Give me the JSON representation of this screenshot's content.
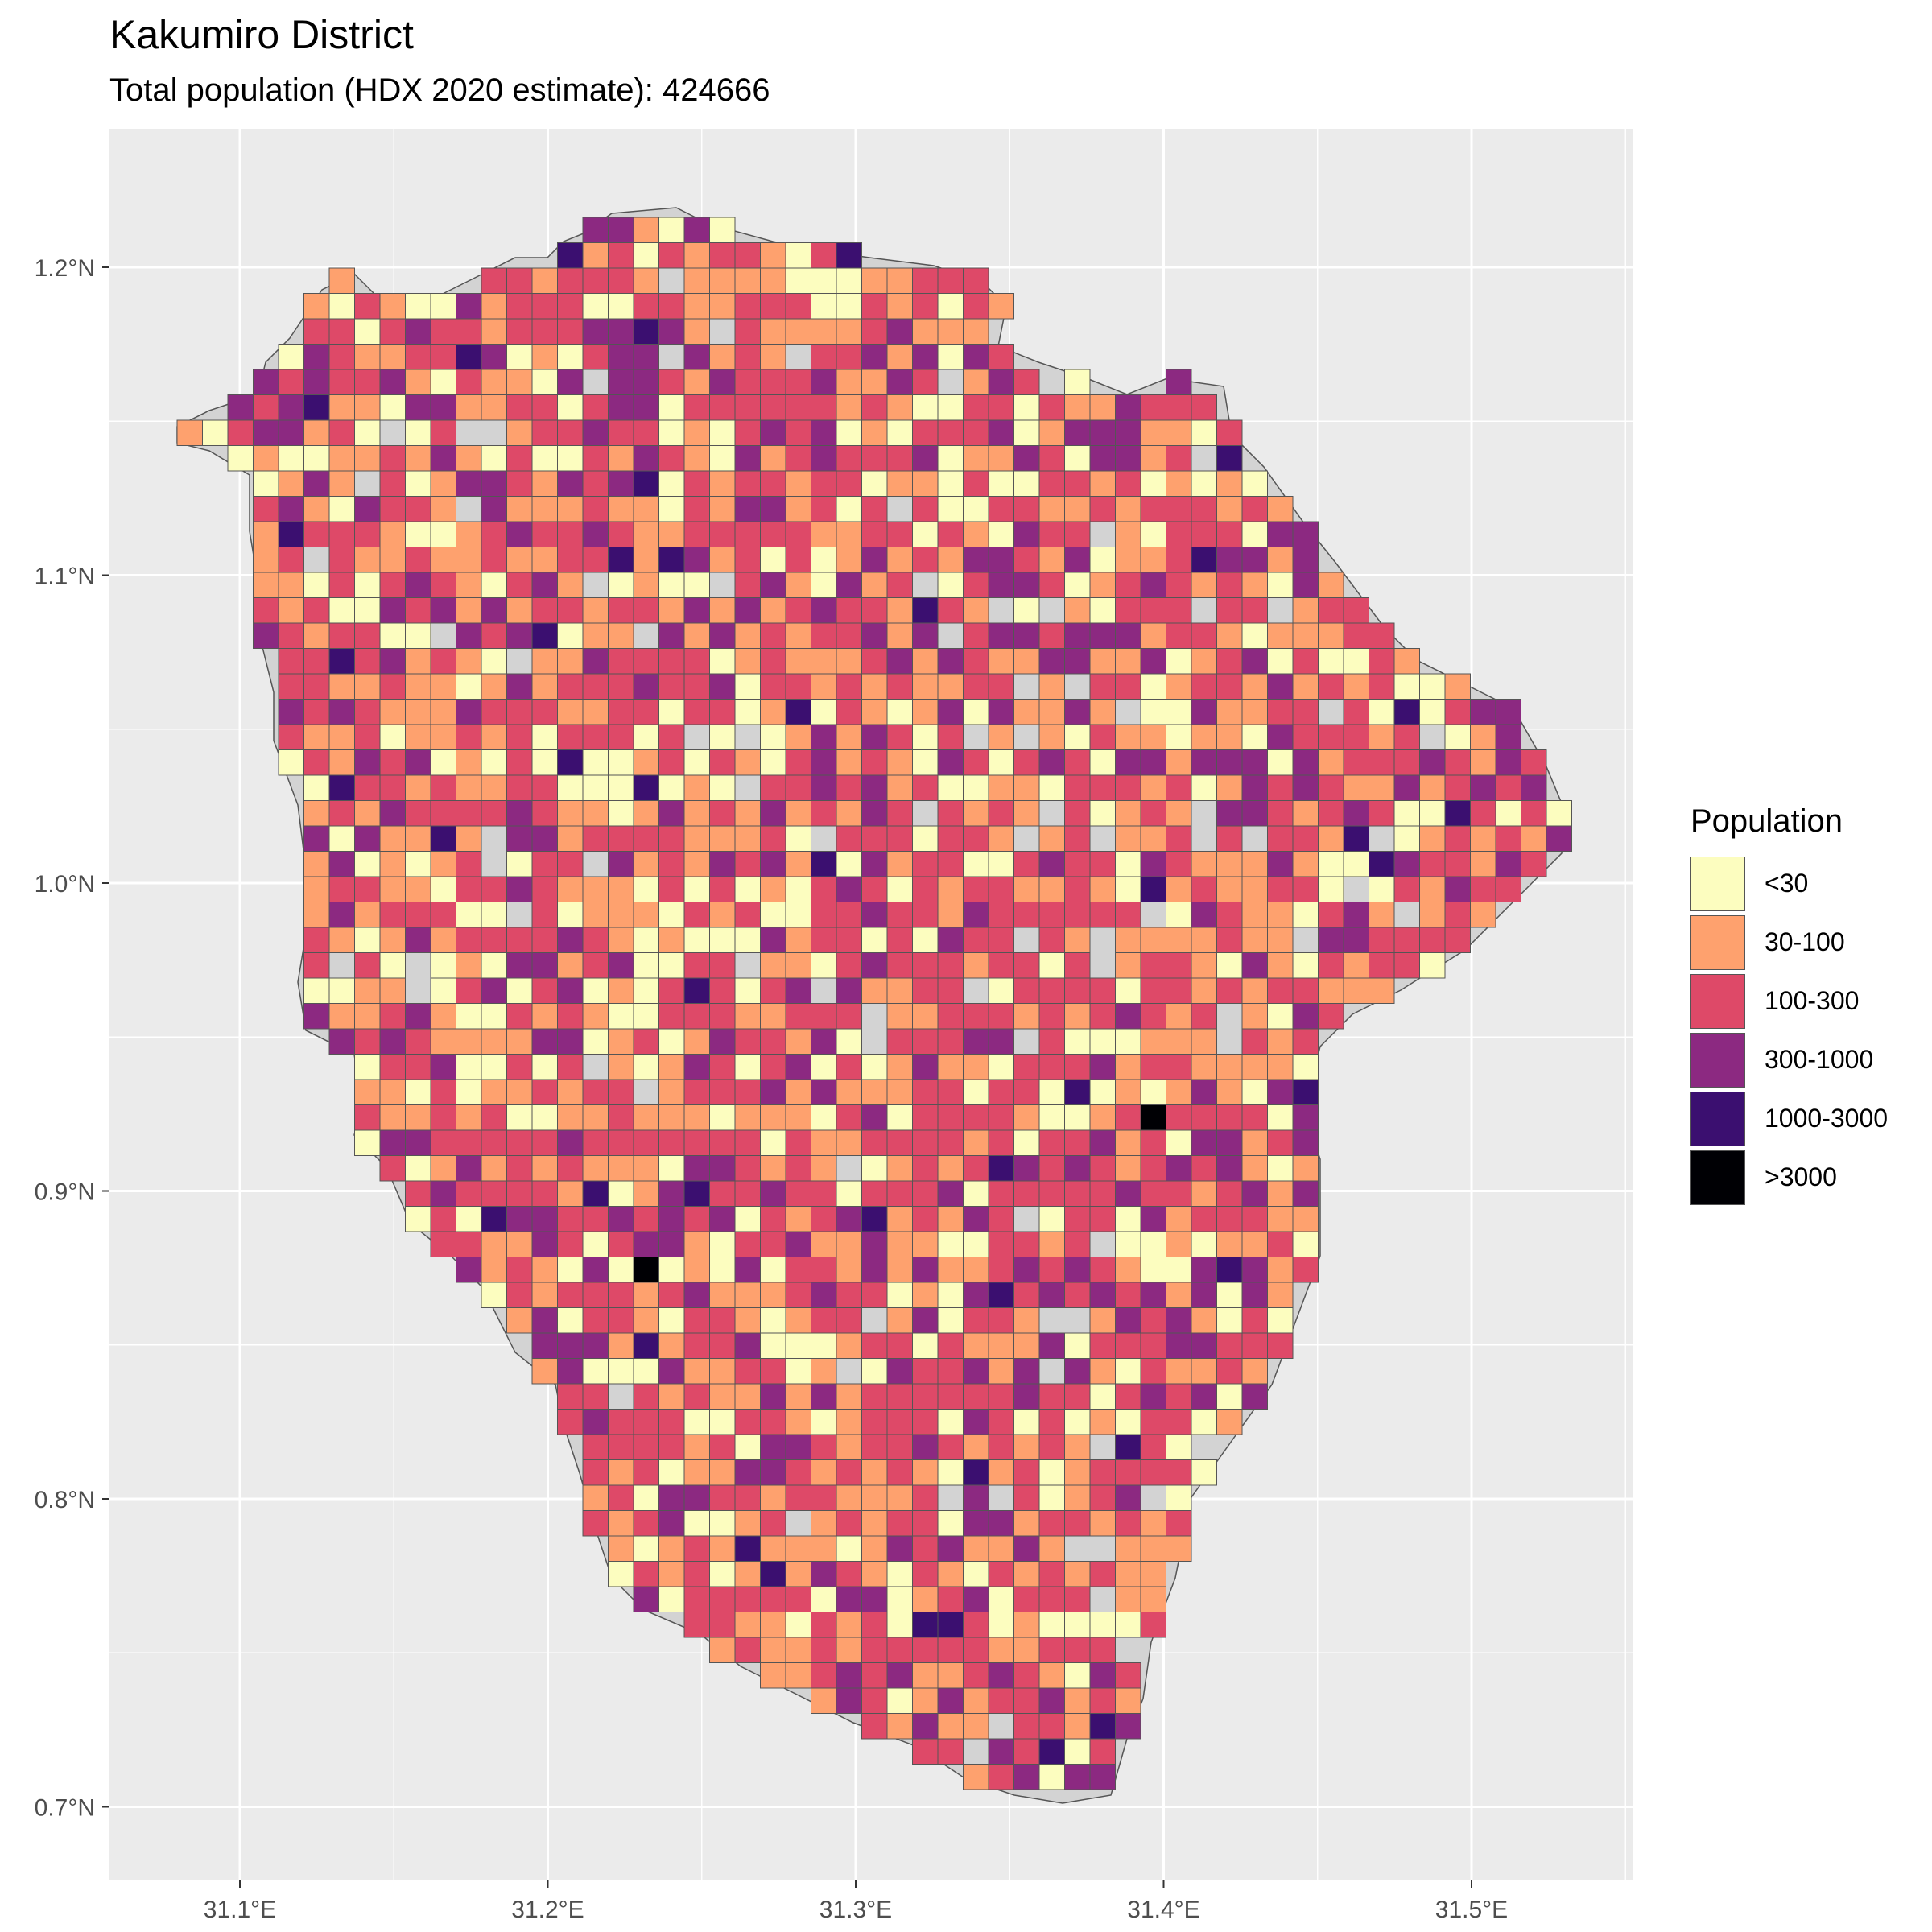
{
  "header": {
    "title": "Kakumiro District",
    "subtitle": "Total population (HDX 2020 estimate): 424666"
  },
  "axes": {
    "x_ticks": [
      "31.1°E",
      "31.2°E",
      "31.3°E",
      "31.4°E",
      "31.5°E"
    ],
    "y_ticks": [
      "1.2°N",
      "1.1°N",
      "1.0°N",
      "0.9°N",
      "0.8°N",
      "0.7°N"
    ]
  },
  "colors": {
    "panel_background": "#ebebeb",
    "gridline": "#ffffff",
    "district_fill": "#d3d3d3",
    "cell_border": "#555555"
  },
  "legend": {
    "title": "Population",
    "items": [
      {
        "label": "<30",
        "color": "#fcfdbf"
      },
      {
        "label": "30-100",
        "color": "#fea16e"
      },
      {
        "label": "100-300",
        "color": "#de4968"
      },
      {
        "label": "300-1000",
        "color": "#8c2981"
      },
      {
        "label": "1000-3000",
        "color": "#3b0f70"
      },
      {
        "label": ">3000",
        "color": "#000004"
      }
    ]
  }
}
